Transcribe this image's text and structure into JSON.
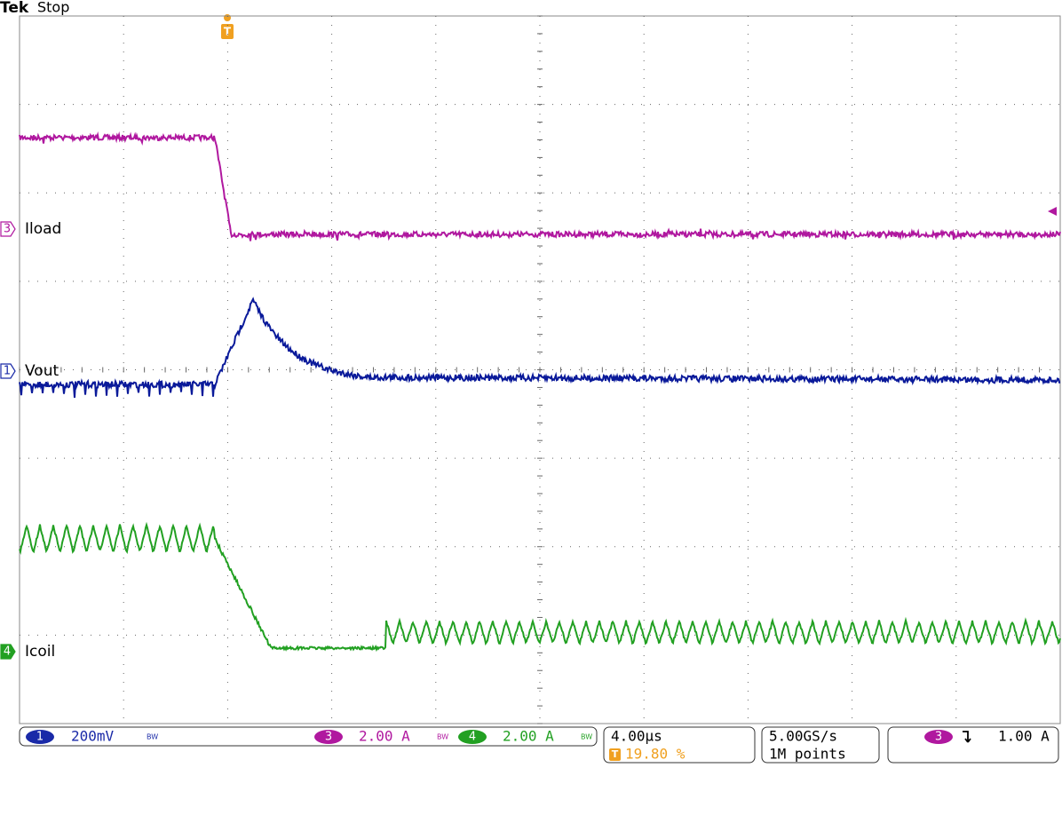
{
  "header": {
    "brand": "Tek",
    "status": "Stop",
    "trigger_marker": "T"
  },
  "channels": [
    {
      "number": "3",
      "label": "Iload"
    },
    {
      "number": "1",
      "label": "Vout"
    },
    {
      "number": "4",
      "label": "Icoil"
    }
  ],
  "status_bar": {
    "ch1": {
      "number": "1",
      "scale": "200mV",
      "bw": "BW"
    },
    "ch3": {
      "number": "3",
      "scale": "2.00 A",
      "bw": "BW"
    },
    "ch4": {
      "number": "4",
      "scale": "2.00 A",
      "bw": "BW"
    },
    "timebase": "4.00µs",
    "trigger_position": {
      "marker": "T",
      "value": "19.80 %"
    },
    "sample_rate": "5.00GS/s",
    "record_length": "1M points",
    "trigger": {
      "source": "3",
      "level": "1.00 A"
    }
  }
}
